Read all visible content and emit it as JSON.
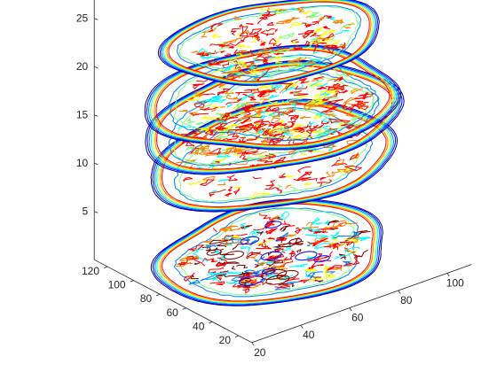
{
  "chart_data": {
    "type": "contour3",
    "title": "",
    "xlabel": "",
    "ylabel": "",
    "zlabel": "",
    "grid": false,
    "xlim": [
      20,
      110
    ],
    "ylim": [
      10,
      130
    ],
    "zlim": [
      0,
      27
    ],
    "x_ticks": [
      20,
      40,
      60,
      80,
      100
    ],
    "y_ticks": [
      20,
      40,
      60,
      80,
      100,
      120
    ],
    "z_ticks": [
      5,
      10,
      15,
      20,
      25
    ],
    "x_tick_labels": [
      "20",
      "40",
      "60",
      "80",
      "100"
    ],
    "y_tick_labels": [
      "20",
      "40",
      "60",
      "80",
      "100",
      "120"
    ],
    "z_tick_labels": [
      "5",
      "10",
      "15",
      "20",
      "25"
    ],
    "colormap": [
      "#00008f",
      "#0000ff",
      "#0080ff",
      "#00ffff",
      "#80ff80",
      "#ffff00",
      "#ff8000",
      "#ff0000",
      "#800000"
    ],
    "slices": [
      {
        "z": 1,
        "rx": 42,
        "ry": 50,
        "texture": 0.9
      },
      {
        "z": 11,
        "rx": 44,
        "ry": 52,
        "texture": 0.45
      },
      {
        "z": 15,
        "rx": 45,
        "ry": 53,
        "texture": 0.5
      },
      {
        "z": 17,
        "rx": 44,
        "ry": 52,
        "texture": 0.4
      },
      {
        "z": 23,
        "rx": 36,
        "ry": 44,
        "texture": 0.45
      }
    ]
  }
}
